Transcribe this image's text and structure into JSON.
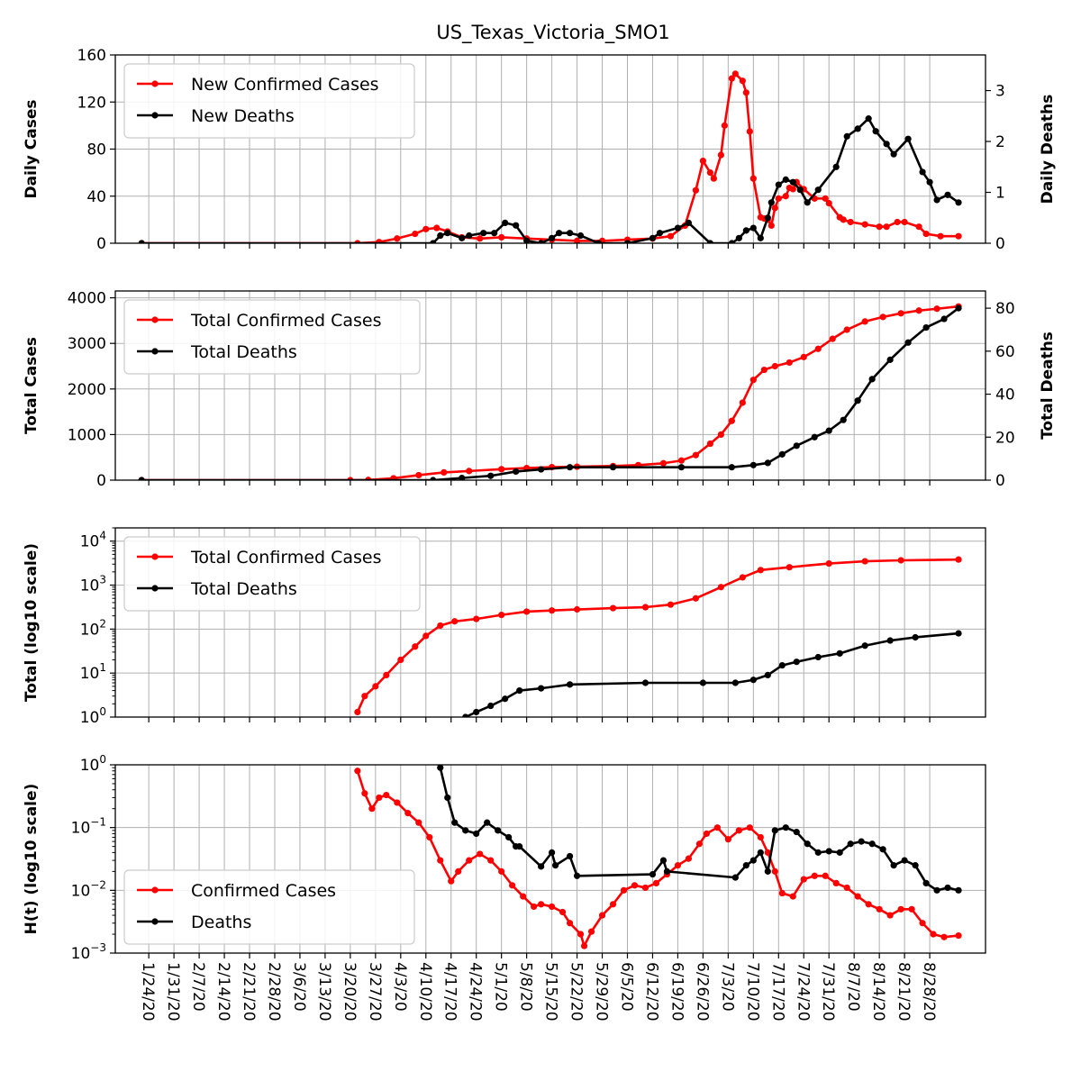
{
  "title": "US_Texas_Victoria_SMO1",
  "colors": {
    "cases": "#ff0000",
    "deaths": "#000000",
    "grid": "#b0b0b0"
  },
  "date_labels": [
    "1/24/20",
    "1/31/20",
    "2/7/20",
    "2/14/20",
    "2/21/20",
    "2/28/20",
    "3/6/20",
    "3/13/20",
    "3/20/20",
    "3/27/20",
    "4/3/20",
    "4/10/20",
    "4/17/20",
    "4/24/20",
    "5/1/20",
    "5/8/20",
    "5/15/20",
    "5/22/20",
    "5/29/20",
    "6/5/20",
    "6/12/20",
    "6/19/20",
    "6/26/20",
    "7/3/20",
    "7/10/20",
    "7/17/20",
    "7/24/20",
    "7/31/20",
    "8/7/20",
    "8/14/20",
    "8/21/20",
    "8/28/20"
  ],
  "chart_data": [
    {
      "type": "line",
      "panel": "daily",
      "xlabel": "",
      "ylabel": "Daily Cases",
      "ylabel_right": "Daily Deaths",
      "ylim": [
        0,
        160
      ],
      "ylim_right": [
        0,
        3.7
      ],
      "yticks": [
        0,
        40,
        80,
        120,
        160
      ],
      "yticks_right": [
        0,
        1,
        2,
        3
      ],
      "legend": [
        "New Confirmed Cases",
        "New Deaths"
      ],
      "legend_position": "upper-left",
      "grid": true,
      "series": [
        {
          "name": "New Confirmed Cases",
          "axis": "left",
          "x": [
            "1/22/20",
            "3/22/20",
            "3/28/20",
            "4/2/20",
            "4/7/20",
            "4/10/20",
            "4/13/20",
            "4/16/20",
            "4/20/20",
            "4/25/20",
            "5/1/20",
            "5/8/20",
            "5/15/20",
            "5/22/20",
            "5/29/20",
            "6/5/20",
            "6/12/20",
            "6/17/20",
            "6/21/20",
            "6/24/20",
            "6/26/20",
            "6/28/20",
            "6/29/20",
            "7/1/20",
            "7/2/20",
            "7/4/20",
            "7/5/20",
            "7/7/20",
            "7/8/20",
            "7/9/20",
            "7/10/20",
            "7/12/20",
            "7/13/20",
            "7/14/20",
            "7/15/20",
            "7/16/20",
            "7/17/20",
            "7/19/20",
            "7/20/20",
            "7/21/20",
            "7/22/20",
            "7/24/20",
            "7/27/20",
            "7/30/20",
            "7/31/20",
            "8/3/20",
            "8/4/20",
            "8/6/20",
            "8/10/20",
            "8/14/20",
            "8/16/20",
            "8/19/20",
            "8/21/20",
            "8/25/20",
            "8/27/20",
            "8/31/20",
            "9/5/20"
          ],
          "values": [
            0,
            0,
            1,
            4,
            8,
            12,
            13,
            10,
            5,
            4,
            5,
            4,
            3,
            2,
            2,
            3,
            4,
            6,
            15,
            45,
            70,
            60,
            55,
            75,
            100,
            140,
            144,
            138,
            128,
            95,
            55,
            22,
            21,
            20,
            15,
            30,
            38,
            40,
            47,
            46,
            52,
            46,
            38,
            38,
            34,
            22,
            20,
            18,
            16,
            14,
            14,
            18,
            18,
            14,
            8,
            6,
            6
          ]
        },
        {
          "name": "New Deaths",
          "axis": "right",
          "x": [
            "1/22/20",
            "4/12/20",
            "4/14/20",
            "4/16/20",
            "4/20/20",
            "4/22/20",
            "4/26/20",
            "4/29/20",
            "5/2/20",
            "5/5/20",
            "5/8/20",
            "5/12/20",
            "5/15/20",
            "5/17/20",
            "5/20/20",
            "5/23/20",
            "5/28/20",
            "6/5/20",
            "6/12/20",
            "6/14/20",
            "6/19/20",
            "6/22/20",
            "6/28/20",
            "7/4/20",
            "7/6/20",
            "7/8/20",
            "7/10/20",
            "7/12/20",
            "7/14/20",
            "7/15/20",
            "7/17/20",
            "7/19/20",
            "7/21/20",
            "7/23/20",
            "7/25/20",
            "7/28/20",
            "8/2/20",
            "8/5/20",
            "8/8/20",
            "8/11/20",
            "8/13/20",
            "8/16/20",
            "8/18/20",
            "8/22/20",
            "8/26/20",
            "8/28/20",
            "8/30/20",
            "9/2/20",
            "9/5/20"
          ],
          "values": [
            0,
            0,
            0.15,
            0.2,
            0.1,
            0.15,
            0.2,
            0.2,
            0.4,
            0.35,
            0.05,
            0,
            0.1,
            0.2,
            0.2,
            0.15,
            0,
            0,
            0.1,
            0.2,
            0.3,
            0.4,
            0,
            0,
            0.1,
            0.25,
            0.3,
            0.1,
            0.5,
            0.8,
            1.15,
            1.25,
            1.2,
            1.05,
            0.8,
            1.05,
            1.5,
            2.1,
            2.25,
            2.45,
            2.2,
            1.95,
            1.75,
            2.05,
            1.4,
            1.2,
            0.85,
            0.95,
            0.8
          ]
        }
      ]
    },
    {
      "type": "line",
      "panel": "total",
      "xlabel": "",
      "ylabel": "Total Cases",
      "ylabel_right": "Total Deaths",
      "ylim": [
        0,
        4150
      ],
      "ylim_right": [
        0,
        88
      ],
      "yticks": [
        0,
        1000,
        2000,
        3000,
        4000
      ],
      "yticks_right": [
        0,
        20,
        40,
        60,
        80
      ],
      "legend": [
        "Total Confirmed Cases",
        "Total Deaths"
      ],
      "legend_position": "upper-left",
      "grid": true,
      "series": [
        {
          "name": "Total Confirmed Cases",
          "axis": "left",
          "x": [
            "1/22/20",
            "3/20/20",
            "3/25/20",
            "4/1/20",
            "4/8/20",
            "4/15/20",
            "4/22/20",
            "5/1/20",
            "5/8/20",
            "5/15/20",
            "5/22/20",
            "6/1/20",
            "6/8/20",
            "6/15/20",
            "6/20/20",
            "6/24/20",
            "6/28/20",
            "7/1/20",
            "7/4/20",
            "7/7/20",
            "7/10/20",
            "7/13/20",
            "7/16/20",
            "7/20/20",
            "7/24/20",
            "7/28/20",
            "8/1/20",
            "8/5/20",
            "8/10/20",
            "8/15/20",
            "8/20/20",
            "8/25/20",
            "8/30/20",
            "9/5/20"
          ],
          "values": [
            0,
            0,
            5,
            40,
            110,
            170,
            200,
            240,
            265,
            285,
            295,
            310,
            330,
            370,
            430,
            550,
            800,
            1000,
            1300,
            1700,
            2200,
            2420,
            2500,
            2580,
            2700,
            2880,
            3100,
            3300,
            3480,
            3580,
            3660,
            3720,
            3760,
            3810
          ]
        },
        {
          "name": "Total Deaths",
          "axis": "right",
          "x": [
            "1/22/20",
            "4/12/20",
            "4/20/20",
            "4/28/20",
            "5/5/20",
            "5/12/20",
            "5/20/20",
            "6/1/20",
            "6/20/20",
            "7/4/20",
            "7/10/20",
            "7/14/20",
            "7/18/20",
            "7/22/20",
            "7/27/20",
            "7/31/20",
            "8/4/20",
            "8/8/20",
            "8/12/20",
            "8/17/20",
            "8/22/20",
            "8/27/20",
            "9/1/20",
            "9/5/20"
          ],
          "values": [
            0,
            0,
            1,
            2,
            4,
            5,
            6,
            6,
            6,
            6,
            7,
            8,
            12,
            16,
            20,
            23,
            28,
            37,
            47,
            56,
            64,
            71,
            75,
            80
          ]
        }
      ]
    },
    {
      "type": "line",
      "panel": "total-log",
      "xlabel": "",
      "ylabel": "Total (log10 scale)",
      "yscale": "log10",
      "ylim": [
        1,
        20000
      ],
      "yticks": [
        1,
        10,
        100,
        1000,
        10000
      ],
      "ytick_labels": [
        "10^0",
        "10^1",
        "10^2",
        "10^3",
        "10^4"
      ],
      "legend": [
        "Total Confirmed Cases",
        "Total Deaths"
      ],
      "legend_position": "upper-left",
      "grid": true,
      "series": [
        {
          "name": "Total Confirmed Cases",
          "x": [
            "3/22/20",
            "3/24/20",
            "3/27/20",
            "3/30/20",
            "4/3/20",
            "4/7/20",
            "4/10/20",
            "4/14/20",
            "4/18/20",
            "4/24/20",
            "5/1/20",
            "5/8/20",
            "5/15/20",
            "5/22/20",
            "6/1/20",
            "6/10/20",
            "6/17/20",
            "6/24/20",
            "7/1/20",
            "7/7/20",
            "7/12/20",
            "7/20/20",
            "7/31/20",
            "8/10/20",
            "8/20/20",
            "9/5/20"
          ],
          "values": [
            1.3,
            3,
            5,
            9,
            20,
            40,
            70,
            120,
            150,
            170,
            210,
            250,
            265,
            280,
            300,
            315,
            360,
            500,
            900,
            1500,
            2200,
            2550,
            3100,
            3480,
            3660,
            3810
          ]
        },
        {
          "name": "Total Deaths",
          "x": [
            "4/21/20",
            "4/24/20",
            "4/28/20",
            "5/2/20",
            "5/6/20",
            "5/12/20",
            "5/20/20",
            "6/10/20",
            "6/26/20",
            "7/5/20",
            "7/10/20",
            "7/14/20",
            "7/18/20",
            "7/22/20",
            "7/28/20",
            "8/3/20",
            "8/10/20",
            "8/17/20",
            "8/24/20",
            "9/5/20"
          ],
          "values": [
            1,
            1.3,
            1.8,
            2.6,
            4,
            4.5,
            5.5,
            6,
            6,
            6,
            7,
            9,
            15,
            18,
            23,
            28,
            42,
            55,
            65,
            80
          ]
        }
      ]
    },
    {
      "type": "line",
      "panel": "hazard",
      "xlabel": "",
      "ylabel": "H(t) (log10 scale)",
      "yscale": "log10",
      "ylim": [
        0.001,
        1
      ],
      "yticks": [
        0.001,
        0.01,
        0.1,
        1
      ],
      "ytick_labels": [
        "10^-3",
        "10^-2",
        "10^-1",
        "10^0"
      ],
      "legend": [
        "Confirmed Cases",
        "Deaths"
      ],
      "legend_position": "lower-left",
      "grid": true,
      "series": [
        {
          "name": "Confirmed Cases",
          "x": [
            "3/22/20",
            "3/24/20",
            "3/26/20",
            "3/28/20",
            "3/30/20",
            "4/2/20",
            "4/5/20",
            "4/8/20",
            "4/11/20",
            "4/14/20",
            "4/17/20",
            "4/19/20",
            "4/22/20",
            "4/25/20",
            "4/28/20",
            "5/1/20",
            "5/4/20",
            "5/7/20",
            "5/10/20",
            "5/12/20",
            "5/15/20",
            "5/18/20",
            "5/20/20",
            "5/23/20",
            "5/24/20",
            "5/26/20",
            "5/29/20",
            "6/1/20",
            "6/4/20",
            "6/7/20",
            "6/10/20",
            "6/13/20",
            "6/16/20",
            "6/19/20",
            "6/22/20",
            "6/25/20",
            "6/27/20",
            "6/30/20",
            "7/3/20",
            "7/6/20",
            "7/9/20",
            "7/12/20",
            "7/14/20",
            "7/16/20",
            "7/18/20",
            "7/21/20",
            "7/24/20",
            "7/27/20",
            "7/30/20",
            "8/2/20",
            "8/5/20",
            "8/8/20",
            "8/11/20",
            "8/14/20",
            "8/17/20",
            "8/20/20",
            "8/23/20",
            "8/26/20",
            "8/29/20",
            "9/1/20",
            "9/5/20"
          ],
          "values": [
            0.8,
            0.35,
            0.2,
            0.3,
            0.33,
            0.25,
            0.17,
            0.12,
            0.07,
            0.03,
            0.014,
            0.02,
            0.03,
            0.038,
            0.03,
            0.02,
            0.012,
            0.008,
            0.0055,
            0.006,
            0.0055,
            0.0045,
            0.003,
            0.002,
            0.0013,
            0.0022,
            0.004,
            0.006,
            0.01,
            0.012,
            0.011,
            0.013,
            0.018,
            0.025,
            0.032,
            0.055,
            0.08,
            0.1,
            0.065,
            0.09,
            0.1,
            0.07,
            0.04,
            0.02,
            0.009,
            0.008,
            0.015,
            0.017,
            0.017,
            0.013,
            0.011,
            0.008,
            0.006,
            0.005,
            0.004,
            0.005,
            0.005,
            0.003,
            0.002,
            0.0018,
            0.0019
          ]
        },
        {
          "name": "Deaths",
          "x": [
            "4/14/20",
            "4/16/20",
            "4/18/20",
            "4/21/20",
            "4/24/20",
            "4/27/20",
            "4/30/20",
            "5/3/20",
            "5/5/20",
            "5/6/20",
            "5/12/20",
            "5/15/20",
            "5/16/20",
            "5/20/20",
            "5/22/20",
            "6/12/20",
            "6/15/20",
            "6/16/20",
            "7/5/20",
            "7/8/20",
            "7/10/20",
            "7/12/20",
            "7/14/20",
            "7/16/20",
            "7/19/20",
            "7/22/20",
            "7/25/20",
            "7/28/20",
            "7/31/20",
            "8/3/20",
            "8/6/20",
            "8/9/20",
            "8/12/20",
            "8/15/20",
            "8/18/20",
            "8/21/20",
            "8/24/20",
            "8/27/20",
            "8/30/20",
            "9/2/20",
            "9/5/20"
          ],
          "values": [
            0.9,
            0.3,
            0.12,
            0.09,
            0.08,
            0.12,
            0.09,
            0.07,
            0.05,
            0.05,
            0.024,
            0.04,
            0.025,
            0.035,
            0.017,
            0.018,
            0.03,
            0.02,
            0.016,
            0.025,
            0.03,
            0.04,
            0.02,
            0.09,
            0.1,
            0.085,
            0.055,
            0.04,
            0.042,
            0.04,
            0.055,
            0.06,
            0.055,
            0.045,
            0.025,
            0.03,
            0.025,
            0.013,
            0.01,
            0.011,
            0.01
          ]
        }
      ]
    }
  ]
}
